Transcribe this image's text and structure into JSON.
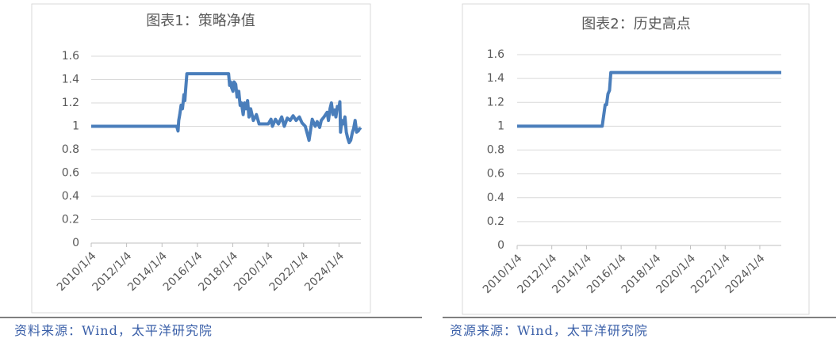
{
  "chart_data": [
    {
      "type": "line",
      "title": "图表1：策略净值",
      "color": "#4a7ebb",
      "grid": true,
      "ylim": [
        0,
        1.6
      ],
      "yticks": [
        0,
        0.2,
        0.4,
        0.6,
        0.8,
        1,
        1.2,
        1.4,
        1.6
      ],
      "xlim": [
        "2010/1/4",
        "2025/3/31"
      ],
      "xticks": [
        "2010/1/4",
        "2012/1/4",
        "2014/1/4",
        "2016/1/4",
        "2018/1/4",
        "2020/1/4",
        "2022/1/4",
        "2024/1/4"
      ],
      "x": [
        "2010/1/4",
        "2014/11/3",
        "2014/12/1",
        "2014/12/15",
        "2015/1/5",
        "2015/2/2",
        "2015/3/2",
        "2015/4/1",
        "2015/4/20",
        "2015/5/4",
        "2015/6/1",
        "2017/10/9",
        "2017/10/30",
        "2017/11/20",
        "2017/12/11",
        "2018/1/8",
        "2018/1/29",
        "2018/3/5",
        "2018/4/2",
        "2018/5/7",
        "2018/6/4",
        "2018/7/2",
        "2018/8/6",
        "2018/9/3",
        "2018/10/8",
        "2018/11/5",
        "2018/12/3",
        "2019/1/7",
        "2019/3/4",
        "2019/5/6",
        "2019/7/1",
        "2019/10/8",
        "2020/1/6",
        "2020/3/2",
        "2020/4/1",
        "2020/6/1",
        "2020/8/3",
        "2020/10/9",
        "2020/12/1",
        "2021/2/1",
        "2021/4/1",
        "2021/6/1",
        "2021/8/2",
        "2021/10/8",
        "2021/12/1",
        "2022/2/7",
        "2022/4/1",
        "2022/4/26",
        "2022/6/1",
        "2022/7/1",
        "2022/9/1",
        "2022/10/10",
        "2022/12/1",
        "2023/1/3",
        "2023/3/1",
        "2023/5/4",
        "2023/6/1",
        "2023/7/3",
        "2023/8/1",
        "2023/9/1",
        "2023/10/9",
        "2023/11/1",
        "2023/12/1",
        "2024/1/2",
        "2024/1/22",
        "2024/2/5",
        "2024/3/1",
        "2024/4/1",
        "2024/5/6",
        "2024/6/3",
        "2024/7/1",
        "2024/8/1",
        "2024/9/2",
        "2024/10/8",
        "2024/11/1",
        "2024/12/2",
        "2025/1/2",
        "2025/2/5",
        "2025/3/3",
        "2025/3/31"
      ],
      "values": [
        1,
        1,
        0.96,
        1.05,
        1.1,
        1.18,
        1.15,
        1.27,
        1.22,
        1.3,
        1.45,
        1.45,
        1.35,
        1.38,
        1.33,
        1.3,
        1.38,
        1.36,
        1.25,
        1.3,
        1.18,
        1.2,
        1.1,
        1.2,
        1.15,
        1.22,
        1.08,
        1.15,
        1.05,
        1.1,
        1.02,
        1.02,
        1.02,
        1.06,
        1.0,
        1.06,
        1.02,
        1.08,
        1.0,
        1.07,
        1.05,
        1.09,
        1.05,
        1.08,
        1.03,
        1.0,
        0.92,
        0.88,
        0.98,
        1.06,
        1.0,
        1.04,
        0.99,
        1.05,
        1.08,
        1.12,
        1.05,
        1.15,
        1.2,
        1.1,
        1.14,
        1.08,
        1.17,
        1.15,
        1.21,
        0.95,
        1.05,
        1.02,
        1.08,
        0.95,
        0.9,
        0.86,
        0.88,
        0.95,
        0.98,
        1.05,
        0.95,
        0.96,
        0.98,
        0.97
      ]
    },
    {
      "type": "line",
      "title": "图表2：历史高点",
      "color": "#4a7ebb",
      "grid": true,
      "ylim": [
        0,
        1.6
      ],
      "yticks": [
        0,
        0.2,
        0.4,
        0.6,
        0.8,
        1,
        1.2,
        1.4,
        1.6
      ],
      "xlim": [
        "2010/1/4",
        "2025/3/31"
      ],
      "xticks": [
        "2010/1/4",
        "2012/1/4",
        "2014/1/4",
        "2016/1/4",
        "2018/1/4",
        "2020/1/4",
        "2022/1/4",
        "2024/1/4"
      ],
      "x": [
        "2010/1/4",
        "2014/12/1",
        "2015/1/5",
        "2015/2/2",
        "2015/3/2",
        "2015/4/1",
        "2015/5/4",
        "2015/6/1",
        "2025/3/31"
      ],
      "values": [
        1,
        1,
        1.1,
        1.18,
        1.18,
        1.27,
        1.3,
        1.45,
        1.45
      ]
    }
  ],
  "sources": [
    "资料来源：Wind，太平洋研究院",
    "资源来源：Wind，太平洋研究院"
  ]
}
